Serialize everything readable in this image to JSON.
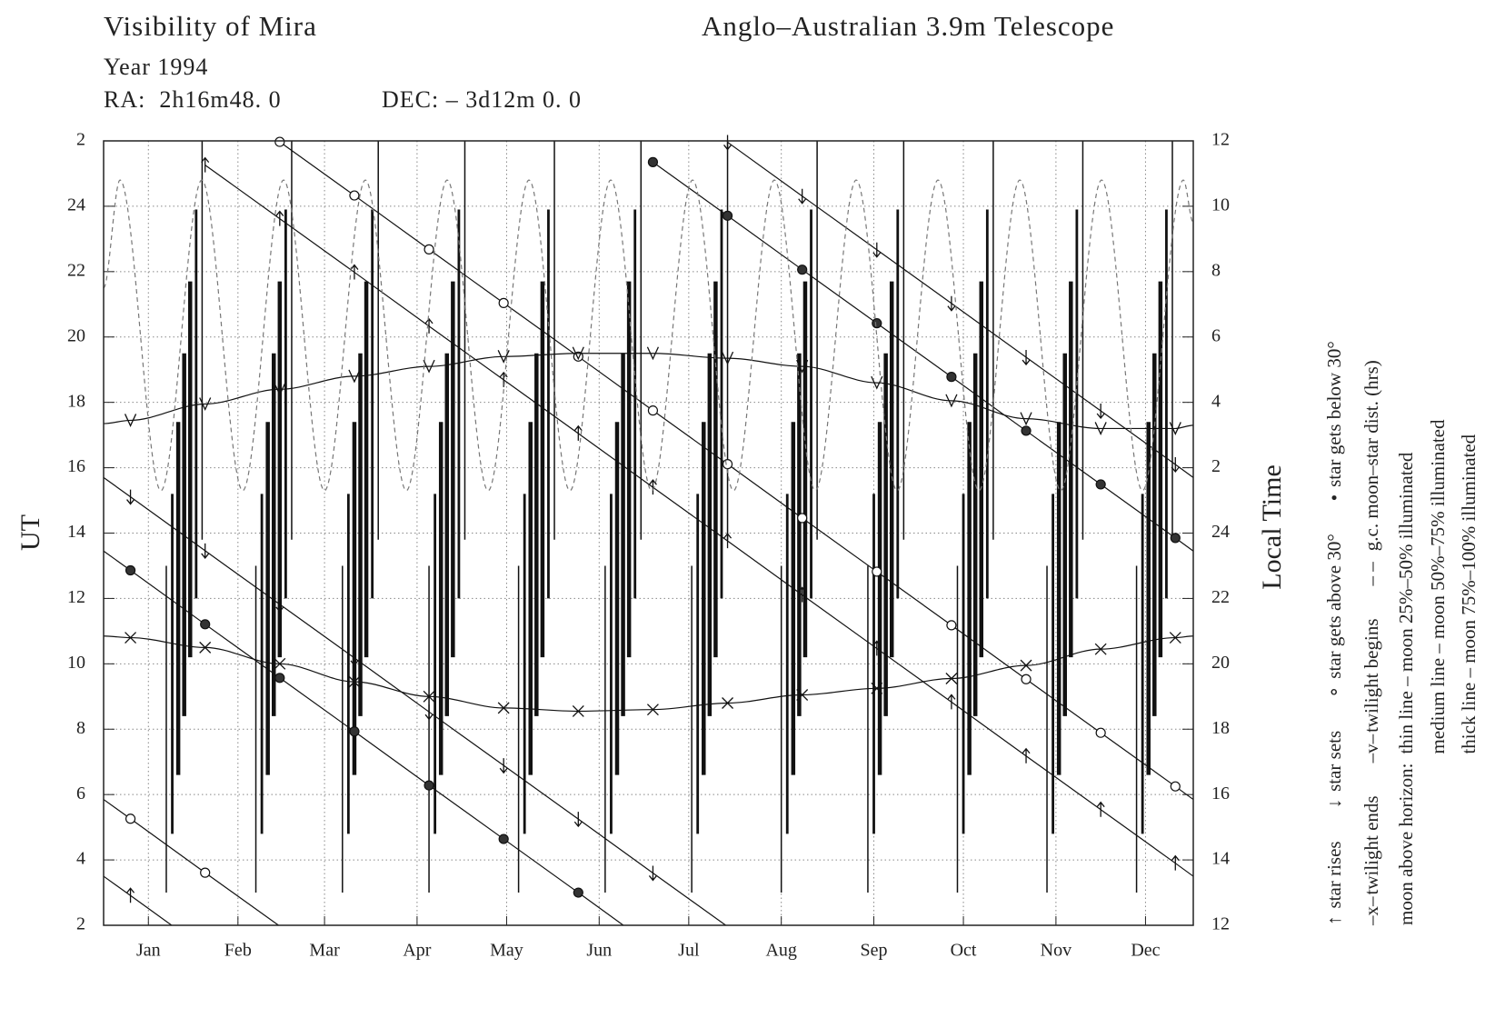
{
  "chart_data": {
    "type": "line",
    "title": "Visibility of Mira",
    "subtitle": "Anglo–Australian 3.9m Telescope",
    "year": "Year 1994",
    "ra": "RA:  2h16m48. 0",
    "dec": "DEC: – 3d12m 0. 0",
    "ylabel": "UT",
    "y2label": "Local Time",
    "xlim": [
      0,
      365
    ],
    "xticks": [
      {
        "value": 15,
        "label": "Jan"
      },
      {
        "value": 45,
        "label": "Feb"
      },
      {
        "value": 74,
        "label": "Mar"
      },
      {
        "value": 105,
        "label": "Apr"
      },
      {
        "value": 135,
        "label": "May"
      },
      {
        "value": 166,
        "label": "Jun"
      },
      {
        "value": 196,
        "label": "Jul"
      },
      {
        "value": 227,
        "label": "Aug"
      },
      {
        "value": 258,
        "label": "Sep"
      },
      {
        "value": 288,
        "label": "Oct"
      },
      {
        "value": 319,
        "label": "Nov"
      },
      {
        "value": 349,
        "label": "Dec"
      }
    ],
    "ylim": [
      2,
      26
    ],
    "yticks": [
      2,
      4,
      6,
      8,
      10,
      12,
      14,
      16,
      18,
      20,
      22,
      24,
      {
        "value": 26,
        "label": "2"
      }
    ],
    "y2lim": [
      12,
      36
    ],
    "y2ticks": [
      12,
      14,
      16,
      18,
      20,
      22,
      24,
      {
        "value": 26,
        "label": "2"
      },
      {
        "value": 28,
        "label": "4"
      },
      {
        "value": 30,
        "label": "6"
      },
      {
        "value": 32,
        "label": "8"
      },
      {
        "value": 34,
        "label": "10"
      },
      {
        "value": 36,
        "label": "12"
      }
    ],
    "grid": true,
    "series": [
      {
        "name": "star rises",
        "legend_symbol": "↑",
        "marker": "arrow-up",
        "color": "#111",
        "x": [
          0,
          9,
          22.8,
          22.8,
          34,
          59,
          84,
          109,
          134,
          159,
          184,
          209,
          234,
          259,
          284,
          309,
          334,
          359,
          365
        ],
        "values": [
          3.5,
          2.91,
          2,
          null,
          25.26,
          23.62,
          21.98,
          20.33,
          18.69,
          17.05,
          15.4,
          13.76,
          12.11,
          10.47,
          8.83,
          7.18,
          5.54,
          3.9,
          3.5
        ]
      },
      {
        "name": "star sets",
        "legend_symbol": "↓",
        "marker": "arrow-down",
        "color": "#111",
        "x": [
          0,
          9,
          34,
          59,
          84,
          109,
          134,
          159,
          184,
          208.4,
          208.4,
          209,
          234,
          259,
          284,
          309,
          334,
          359,
          365
        ],
        "values": [
          15.7,
          15.11,
          13.46,
          11.82,
          10.18,
          8.53,
          6.89,
          5.25,
          3.6,
          2,
          null,
          25.96,
          24.31,
          22.67,
          21.03,
          19.38,
          17.74,
          16.1,
          15.7
        ]
      },
      {
        "name": "star gets above 30°",
        "legend_symbol": "∘",
        "marker": "circle-open",
        "color": "#111",
        "x": [
          0,
          9,
          34,
          58.6,
          58.6,
          59,
          84,
          109,
          134,
          159,
          184,
          209,
          234,
          259,
          284,
          309,
          334,
          359,
          365
        ],
        "values": [
          5.85,
          5.26,
          3.61,
          2,
          null,
          25.97,
          24.33,
          22.68,
          21.04,
          19.4,
          17.75,
          16.11,
          14.46,
          12.82,
          11.18,
          9.53,
          7.89,
          6.25,
          5.85
        ]
      },
      {
        "name": "star gets below 30°",
        "legend_symbol": "•",
        "marker": "circle-filled",
        "color": "#111",
        "x": [
          0,
          9,
          34,
          59,
          84,
          109,
          134,
          159,
          174.1,
          174.1,
          184,
          209,
          234,
          259,
          284,
          309,
          334,
          359,
          365
        ],
        "values": [
          13.45,
          12.86,
          11.21,
          9.57,
          7.93,
          6.28,
          4.64,
          3,
          2,
          null,
          25.35,
          23.71,
          22.06,
          20.42,
          18.78,
          17.13,
          15.49,
          13.85,
          13.45
        ]
      },
      {
        "name": "twilight ends",
        "legend_symbol": "–x–",
        "marker": "x",
        "color": "#111",
        "smooth": true,
        "x": [
          0,
          9,
          34,
          59,
          84,
          109,
          134,
          159,
          184,
          209,
          234,
          259,
          284,
          309,
          334,
          359,
          365
        ],
        "values": [
          10.85,
          10.8,
          10.5,
          10,
          9.45,
          9,
          8.65,
          8.55,
          8.6,
          8.8,
          9.05,
          9.25,
          9.55,
          9.95,
          10.45,
          10.8,
          10.85
        ]
      },
      {
        "name": "twilight begins",
        "legend_symbol": "–v–",
        "marker": "v",
        "color": "#111",
        "smooth": true,
        "x": [
          0,
          9,
          34,
          59,
          84,
          109,
          134,
          159,
          184,
          209,
          234,
          259,
          284,
          309,
          334,
          359,
          365
        ],
        "values": [
          17.35,
          17.45,
          17.95,
          18.4,
          18.8,
          19.1,
          19.4,
          19.5,
          19.5,
          19.35,
          19.1,
          18.6,
          18.05,
          17.5,
          17.2,
          17.2,
          17.3
        ]
      },
      {
        "name": "g.c. moon–star dist. (hrs)",
        "legend_symbol": "– –",
        "color": "#777",
        "dashed": true,
        "smooth": true,
        "x": [
          0,
          5.5,
          19.2,
          32.9,
          46.6,
          60.3,
          74,
          87.7,
          101.4,
          115.1,
          128.8,
          142.5,
          156.2,
          169.9,
          183.6,
          197.3,
          211,
          224.7,
          238.4,
          252.1,
          265.8,
          279.5,
          293.2,
          306.9,
          320.6,
          334.3,
          348,
          361.7,
          365
        ],
        "values": [
          21.5,
          24.8,
          15.3,
          24.8,
          15.3,
          24.8,
          15.3,
          24.8,
          15.3,
          24.8,
          15.3,
          24.8,
          15.3,
          24.8,
          15.3,
          24.8,
          15.3,
          24.8,
          15.3,
          24.8,
          15.3,
          24.8,
          15.3,
          24.8,
          15.3,
          24.8,
          15.3,
          24.8,
          23.5
        ]
      }
    ],
    "moon_legend_title": "moon above horizon:",
    "moon_bars": [
      {
        "name": "thin line – moon 25%–50% illuminated",
        "line_width": 1.5,
        "color": "#111",
        "x": [
          21,
          33,
          51,
          63,
          80,
          92,
          109,
          121,
          139,
          151,
          168,
          180,
          197,
          209,
          227,
          239,
          256,
          268,
          286,
          298,
          316,
          328,
          346,
          358
        ],
        "low": [
          3,
          13.8,
          3,
          13.8,
          3,
          13.8,
          3,
          13.8,
          3,
          13.8,
          3,
          13.8,
          3,
          13.8,
          3,
          13.8,
          3,
          13.8,
          3,
          13.8,
          3,
          13.8,
          3,
          13.8
        ],
        "high": [
          13,
          26,
          13,
          26,
          13,
          26,
          13,
          26,
          13,
          26,
          13,
          26,
          13,
          26,
          13,
          26,
          13,
          26,
          13,
          26,
          13,
          26,
          13,
          26
        ]
      },
      {
        "name": "medium line – moon 50%–75% illuminated",
        "line_width": 2.8,
        "color": "#111",
        "x": [
          23,
          31,
          53,
          61,
          82,
          90,
          111,
          119,
          141,
          149,
          170,
          178,
          199,
          207,
          229,
          237,
          258,
          266,
          288,
          296,
          318,
          326,
          348,
          356
        ],
        "low": [
          4.8,
          12,
          4.8,
          12,
          4.8,
          12,
          4.8,
          12,
          4.8,
          12,
          4.8,
          12,
          4.8,
          12,
          4.8,
          12,
          4.8,
          12,
          4.8,
          12,
          4.8,
          12,
          4.8,
          12
        ],
        "high": [
          15.2,
          23.9,
          15.2,
          23.9,
          15.2,
          23.9,
          15.2,
          23.9,
          15.2,
          23.9,
          15.2,
          23.9,
          15.2,
          23.9,
          15.2,
          23.9,
          15.2,
          23.9,
          15.2,
          23.9,
          15.2,
          23.9,
          15.2,
          23.9
        ]
      },
      {
        "name": "thick line – moon 75%–100% illuminated",
        "line_width": 4.5,
        "color": "#111",
        "x": [
          25,
          27,
          29,
          55,
          57,
          59,
          84,
          86,
          88,
          113,
          115,
          117,
          143,
          145,
          147,
          172,
          174,
          176,
          201,
          203,
          205,
          231,
          233,
          235,
          260,
          262,
          264,
          290,
          292,
          294,
          320,
          322,
          324,
          350,
          352,
          354
        ],
        "low": [
          6.6,
          8.4,
          10.2,
          6.6,
          8.4,
          10.2,
          6.6,
          8.4,
          10.2,
          6.6,
          8.4,
          10.2,
          6.6,
          8.4,
          10.2,
          6.6,
          8.4,
          10.2,
          6.6,
          8.4,
          10.2,
          6.6,
          8.4,
          10.2,
          6.6,
          8.4,
          10.2,
          6.6,
          8.4,
          10.2,
          6.6,
          8.4,
          10.2,
          6.6,
          8.4,
          10.2
        ],
        "high": [
          17.4,
          19.5,
          21.7,
          17.4,
          19.5,
          21.7,
          17.4,
          19.5,
          21.7,
          17.4,
          19.5,
          21.7,
          17.4,
          19.5,
          21.7,
          17.4,
          19.5,
          21.7,
          17.4,
          19.5,
          21.7,
          17.4,
          19.5,
          21.7,
          17.4,
          19.5,
          21.7,
          17.4,
          19.5,
          21.7,
          17.4,
          19.5,
          21.7,
          17.4,
          19.5,
          21.7
        ]
      }
    ]
  }
}
